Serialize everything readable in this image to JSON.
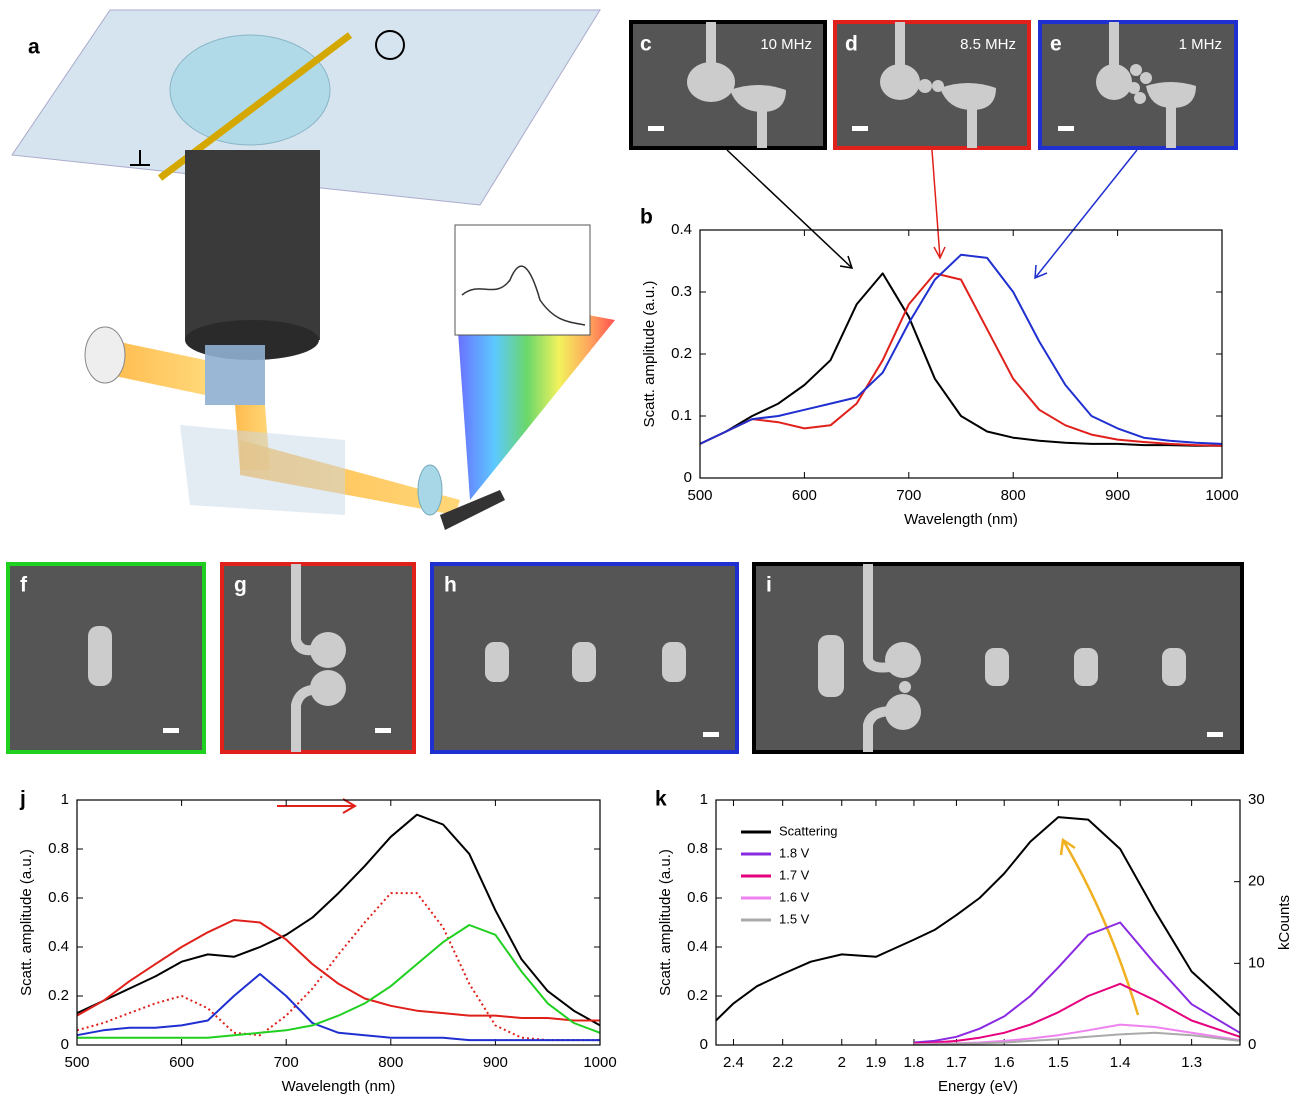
{
  "illustration": {
    "panel": "a"
  },
  "images": [
    {
      "panel": "c",
      "text": "10 MHz"
    },
    {
      "panel": "d",
      "text": "8.5 MHz"
    },
    {
      "panel": "e",
      "text": "1 MHz"
    },
    {
      "panel": "f"
    },
    {
      "panel": "g"
    },
    {
      "panel": "h"
    },
    {
      "panel": "i"
    }
  ],
  "chart_data": [
    {
      "type": "line",
      "panel": "b",
      "xlabel": "Wavelength (nm)",
      "ylabel": "Scatt. amplitude (a.u.)",
      "xlim": [
        500,
        1000
      ],
      "xticks": [
        500,
        600,
        700,
        800,
        900,
        1000
      ],
      "ylim": [
        0,
        0.4
      ],
      "yticks": [
        0,
        0.1,
        0.2,
        0.3,
        0.4
      ],
      "x": [
        500,
        525,
        550,
        575,
        600,
        625,
        650,
        675,
        700,
        725,
        750,
        775,
        800,
        825,
        850,
        875,
        900,
        925,
        950,
        975,
        1000
      ],
      "series": [
        {
          "color": "#000000",
          "values": [
            0.055,
            0.075,
            0.1,
            0.12,
            0.15,
            0.19,
            0.28,
            0.33,
            0.26,
            0.16,
            0.1,
            0.075,
            0.065,
            0.06,
            0.057,
            0.055,
            0.055,
            0.053,
            0.053,
            0.052,
            0.052
          ]
        },
        {
          "color": "#e0201b",
          "values": [
            0.055,
            0.075,
            0.095,
            0.09,
            0.08,
            0.085,
            0.12,
            0.19,
            0.28,
            0.33,
            0.32,
            0.24,
            0.16,
            0.11,
            0.085,
            0.07,
            0.062,
            0.058,
            0.055,
            0.053,
            0.052
          ]
        },
        {
          "color": "#2030d0",
          "values": [
            0.055,
            0.075,
            0.095,
            0.1,
            0.11,
            0.12,
            0.13,
            0.17,
            0.25,
            0.32,
            0.36,
            0.355,
            0.3,
            0.22,
            0.15,
            0.1,
            0.08,
            0.065,
            0.06,
            0.057,
            0.055
          ]
        }
      ]
    },
    {
      "type": "line",
      "panel": "j",
      "xlabel": "Wavelength (nm)",
      "ylabel": "Scatt. amplitude (a.u.)",
      "xlim": [
        500,
        1000
      ],
      "xticks": [
        500,
        600,
        700,
        800,
        900,
        1000
      ],
      "ylim": [
        0,
        1
      ],
      "yticks": [
        0,
        0.2,
        0.4,
        0.6,
        0.8,
        1
      ],
      "x": [
        500,
        525,
        550,
        575,
        600,
        625,
        650,
        675,
        700,
        725,
        750,
        775,
        800,
        825,
        850,
        875,
        900,
        925,
        950,
        975,
        1000
      ],
      "series": [
        {
          "color": "#000000",
          "values": [
            0.13,
            0.18,
            0.23,
            0.28,
            0.34,
            0.37,
            0.36,
            0.4,
            0.45,
            0.52,
            0.62,
            0.73,
            0.85,
            0.94,
            0.9,
            0.78,
            0.55,
            0.35,
            0.22,
            0.14,
            0.08
          ]
        },
        {
          "color": "#e0201b",
          "values": [
            0.12,
            0.18,
            0.26,
            0.33,
            0.4,
            0.46,
            0.51,
            0.5,
            0.43,
            0.33,
            0.25,
            0.19,
            0.16,
            0.14,
            0.13,
            0.12,
            0.12,
            0.11,
            0.11,
            0.1,
            0.1
          ]
        },
        {
          "color": "#e0201b",
          "dash": "dotted",
          "values": [
            0.06,
            0.09,
            0.13,
            0.17,
            0.2,
            0.15,
            0.05,
            0.04,
            0.12,
            0.23,
            0.37,
            0.5,
            0.62,
            0.62,
            0.48,
            0.25,
            0.08,
            0.03,
            0.02,
            0.02,
            0.02
          ]
        },
        {
          "color": "#2030d0",
          "values": [
            0.04,
            0.06,
            0.07,
            0.07,
            0.08,
            0.1,
            0.2,
            0.29,
            0.2,
            0.09,
            0.05,
            0.04,
            0.03,
            0.03,
            0.03,
            0.02,
            0.02,
            0.02,
            0.02,
            0.02,
            0.02
          ]
        },
        {
          "color": "#20d020",
          "values": [
            0.03,
            0.03,
            0.03,
            0.03,
            0.03,
            0.03,
            0.04,
            0.05,
            0.06,
            0.08,
            0.12,
            0.17,
            0.24,
            0.33,
            0.42,
            0.49,
            0.45,
            0.3,
            0.17,
            0.09,
            0.05
          ]
        }
      ]
    },
    {
      "type": "line",
      "panel": "k",
      "xlabel": "Energy (eV)",
      "ylabel": "Scatt. amplitude (a.u.)",
      "y2label": "kCounts",
      "xscale": "reciprocal",
      "xlim": [
        2.48,
        1.24
      ],
      "xticks": [
        2.4,
        2.2,
        2,
        1.9,
        1.8,
        1.7,
        1.6,
        1.5,
        1.4,
        1.3
      ],
      "ylim": [
        0,
        1
      ],
      "yticks": [
        0,
        0.2,
        0.4,
        0.6,
        0.8,
        1
      ],
      "y2lim": [
        0,
        30
      ],
      "y2ticks": [
        0,
        10,
        20,
        30
      ],
      "legend": "upper left",
      "x": [
        2.48,
        2.4,
        2.3,
        2.2,
        2.1,
        2.0,
        1.9,
        1.8,
        1.75,
        1.7,
        1.65,
        1.6,
        1.55,
        1.5,
        1.45,
        1.4,
        1.35,
        1.3,
        1.24
      ],
      "series": [
        {
          "name": "Scattering",
          "color": "#000000",
          "values": [
            0.1,
            0.17,
            0.24,
            0.29,
            0.34,
            0.37,
            0.36,
            0.43,
            0.47,
            0.53,
            0.6,
            0.7,
            0.83,
            0.93,
            0.92,
            0.8,
            0.55,
            0.3,
            0.12
          ]
        },
        {
          "name": "1.8 V",
          "color": "#8a2be2",
          "axis": "y2",
          "values": [
            null,
            null,
            null,
            null,
            null,
            null,
            null,
            0.3,
            0.5,
            1.0,
            2.0,
            3.5,
            6,
            9.5,
            13.5,
            15,
            10,
            5,
            1.5
          ]
        },
        {
          "name": "1.7 V",
          "color": "#e6007e",
          "axis": "y2",
          "values": [
            null,
            null,
            null,
            null,
            null,
            null,
            null,
            0.2,
            0.3,
            0.5,
            0.9,
            1.5,
            2.5,
            4,
            6,
            7.5,
            5.5,
            3,
            1
          ]
        },
        {
          "name": "1.6 V",
          "color": "#ee82ee",
          "axis": "y2",
          "values": [
            null,
            null,
            null,
            null,
            null,
            null,
            null,
            0.1,
            0.15,
            0.2,
            0.3,
            0.5,
            0.8,
            1.2,
            1.8,
            2.5,
            2.2,
            1.5,
            0.6
          ]
        },
        {
          "name": "1.5 V",
          "color": "#aaaaaa",
          "axis": "y2",
          "values": [
            null,
            null,
            null,
            null,
            null,
            null,
            null,
            0.05,
            0.1,
            0.15,
            0.2,
            0.3,
            0.5,
            0.7,
            1.0,
            1.3,
            1.5,
            1.2,
            0.5
          ]
        }
      ]
    }
  ]
}
